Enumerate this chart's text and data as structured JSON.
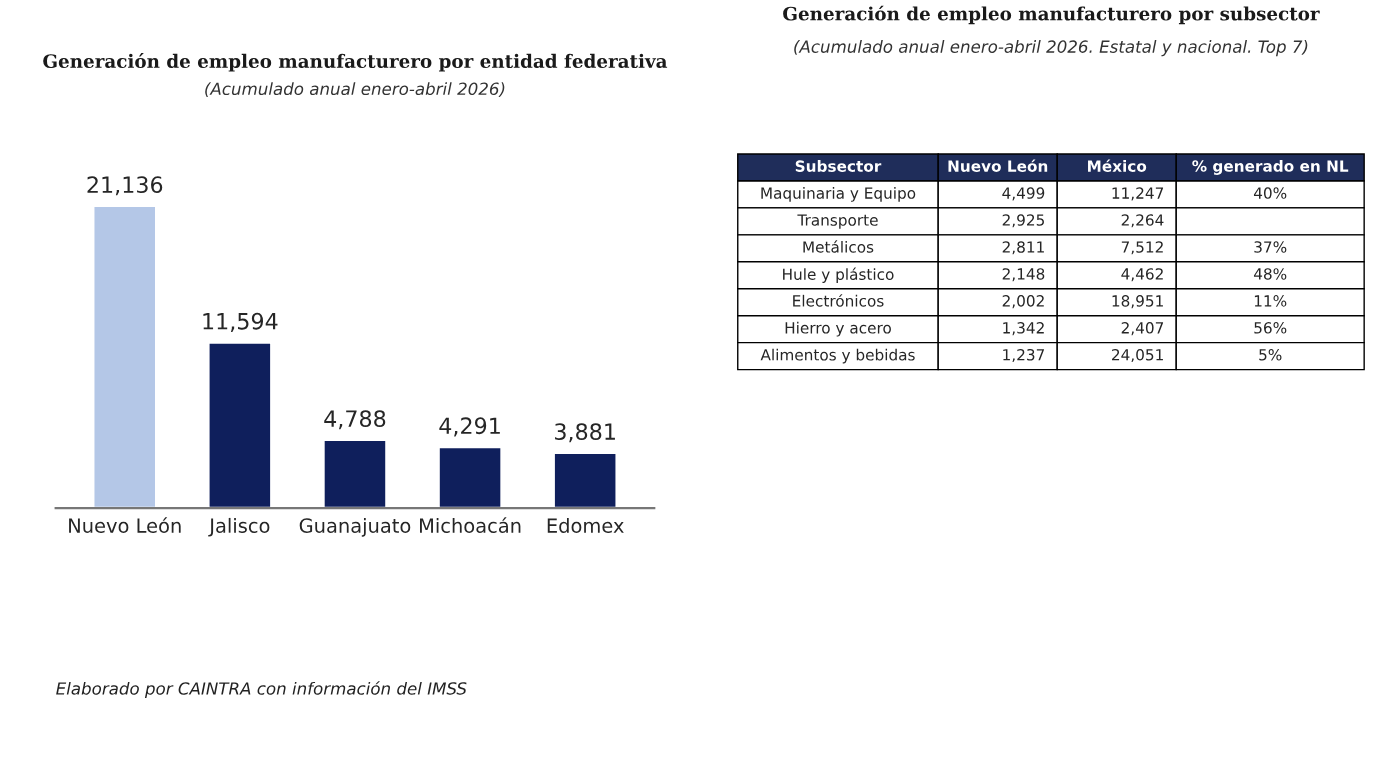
{
  "chart_data": [
    {
      "type": "bar",
      "title": "Generación de empleo manufacturero por entidad federativa",
      "subtitle": "(Acumulado anual enero-abril 2026)",
      "categories": [
        "Nuevo León",
        "Jalisco",
        "Guanajuato",
        "Michoacán",
        "Edomex"
      ],
      "values": [
        21136,
        11594,
        4788,
        4291,
        3881
      ],
      "colors": [
        "#b4c7e7",
        "#0f1f5c",
        "#0f1f5c",
        "#0f1f5c",
        "#0f1f5c"
      ],
      "value_labels": [
        "21,136",
        "11,594",
        "4,788",
        "4,291",
        "3,881"
      ],
      "annotations": [
        "Elaborado por CAINTRA con información del IMSS"
      ]
    },
    {
      "type": "other",
      "title": "Generación de empleo manufacturero por subsector",
      "subtitle": "(Acumulado anual enero-abril 2026. Estatal y nacional. Top 7)",
      "annotations": [
        "Subsector"
      ],
      "categories": [
        "Maquinaria y Equipo",
        "Transporte",
        "Metálicos",
        "Hule y plástico",
        "Electrónicos",
        "Hierro y acero",
        "Alimentos y bebidas"
      ],
      "series": [
        {
          "name": "Nuevo León",
          "values": [
            4499,
            2925,
            2811,
            2148,
            2002,
            1342,
            1237
          ],
          "value_labels": [
            "4,499",
            "2,925",
            "2,811",
            "2,148",
            "2,002",
            "1,342",
            "1,237"
          ]
        },
        {
          "name": "México",
          "values": [
            11247,
            2264,
            7512,
            4462,
            18951,
            2407,
            24051
          ],
          "value_labels": [
            "11,247",
            "2,264",
            "7,512",
            "4,462",
            "18,951",
            "2,407",
            "24,051"
          ]
        },
        {
          "name": "% generado en NL",
          "values": [
            40,
            null,
            37,
            48,
            11,
            56,
            5
          ],
          "value_labels": [
            "40%",
            null,
            "37%",
            "48%",
            "11%",
            "56%",
            "5%"
          ]
        }
      ]
    }
  ]
}
